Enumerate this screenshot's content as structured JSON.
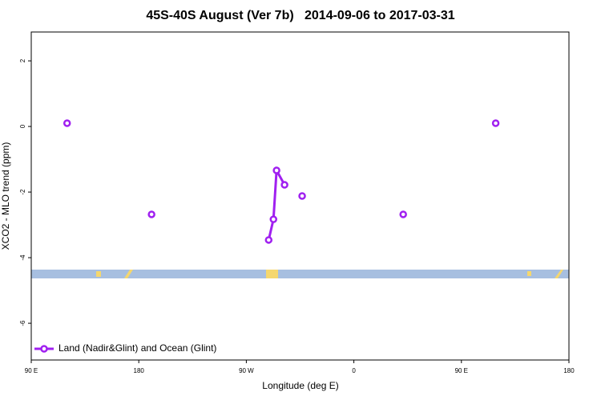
{
  "chart_data": {
    "type": "line",
    "title": "45S-40S August (Ver 7b)   2014-09-06 to 2017-03-31",
    "x_label": "Longitude (deg E)",
    "y_label": "XCO2 - MLO trend (ppm)",
    "xlim": [
      90,
      540
    ],
    "xticks": [
      {
        "value": 90,
        "label": "90 E"
      },
      {
        "value": 180,
        "label": "180"
      },
      {
        "value": 270,
        "label": "90 W"
      },
      {
        "value": 360,
        "label": "0"
      },
      {
        "value": 450,
        "label": "90 E"
      },
      {
        "value": 540,
        "label": "180"
      }
    ],
    "ylim": [
      -7.12,
      2.88
    ],
    "yticks": [
      2,
      0,
      -2,
      -4,
      -6
    ],
    "legend": "bottom-left",
    "series": [
      {
        "name": "Land (Nadir&Glint) and Ocean (Glint)",
        "color": "#a020f0",
        "x": [
          120,
          null,
          190.7,
          null,
          288.7,
          292.7,
          295.3,
          302,
          null,
          316.7,
          null,
          401.3,
          null,
          478.7
        ],
        "values": [
          0.1,
          null,
          -2.68,
          null,
          -3.46,
          -2.83,
          -1.34,
          -1.78,
          null,
          -2.12,
          null,
          -2.68,
          null,
          0.1
        ]
      }
    ]
  }
}
